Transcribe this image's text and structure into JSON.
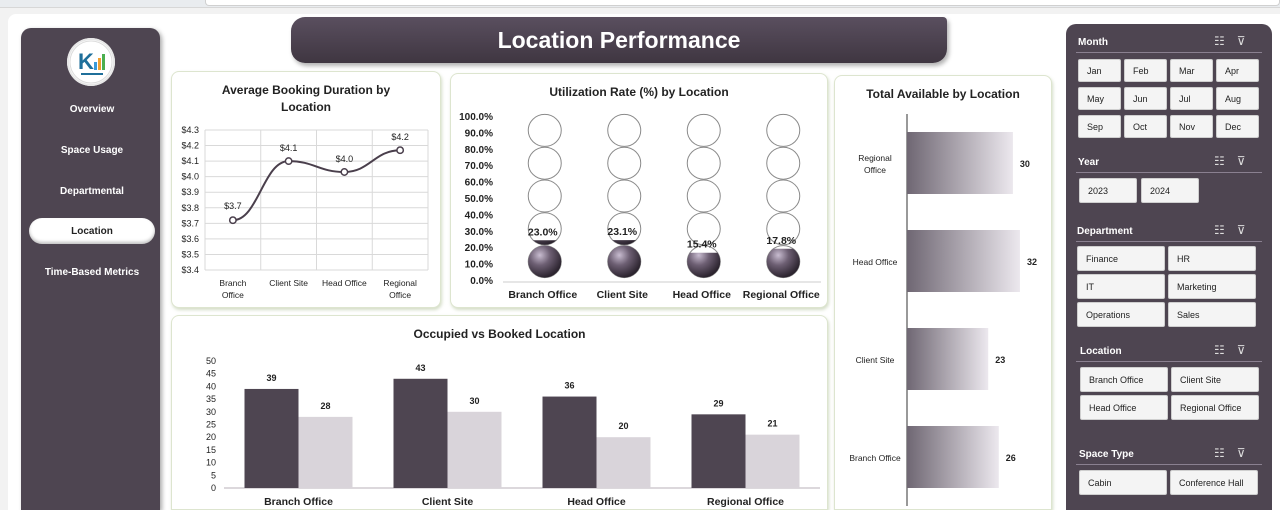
{
  "dashboard_title": "Location Performance",
  "nav": {
    "overview": "Overview",
    "space_usage": "Space Usage",
    "departmental": "Departmental",
    "location": "Location",
    "time_based": "Time-Based Metrics"
  },
  "colors": {
    "dark": "#4e4551",
    "light": "#d9d4da",
    "line": "#4a3f4c"
  },
  "avg_duration": {
    "title": "Average Booking Duration by Location",
    "chart_data": {
      "type": "line",
      "title": "Average Booking Duration by Location",
      "categories": [
        "Branch Office",
        "Client Site",
        "Head Office",
        "Regional Office"
      ],
      "values": [
        3.72,
        4.1,
        4.03,
        4.17
      ],
      "data_labels": [
        "$3.7",
        "$4.1",
        "$4.0",
        "$4.2"
      ],
      "ylim": [
        3.4,
        4.3
      ],
      "y_ticks": [
        "$3.4",
        "$3.5",
        "$3.6",
        "$3.7",
        "$3.8",
        "$3.9",
        "$4.0",
        "$4.1",
        "$4.2",
        "$4.3"
      ],
      "grid": true
    }
  },
  "utilization": {
    "title": "Utilization Rate (%) by Location",
    "chart_data": {
      "type": "bar",
      "title": "Utilization Rate (%) by Location",
      "categories": [
        "Branch Office",
        "Client Site",
        "Head Office",
        "Regional Office"
      ],
      "values": [
        23.0,
        23.1,
        15.4,
        17.8
      ],
      "data_labels": [
        "23.0%",
        "23.1%",
        "15.4%",
        "17.8%"
      ],
      "ylim": [
        0,
        100
      ],
      "y_ticks": [
        "0.0%",
        "10.0%",
        "20.0%",
        "30.0%",
        "40.0%",
        "50.0%",
        "60.0%",
        "70.0%",
        "80.0%",
        "90.0%",
        "100.0%"
      ]
    }
  },
  "total_available": {
    "title": "Total Available by Location",
    "chart_data": {
      "type": "bar",
      "orientation": "horizontal",
      "title": "Total Available by Location",
      "categories": [
        "Regional Office",
        "Head Office",
        "Client Site",
        "Branch Office"
      ],
      "category_lines": [
        [
          "Regional",
          "Office"
        ],
        [
          "Head Office"
        ],
        [
          "Client Site"
        ],
        [
          "Branch Office"
        ]
      ],
      "values": [
        30,
        32,
        23,
        26
      ],
      "xlim": [
        0,
        35
      ]
    }
  },
  "occupied_booked": {
    "title": "Occupied vs Booked Location",
    "chart_data": {
      "type": "bar",
      "title": "Occupied vs Booked Location",
      "categories": [
        "Branch Office",
        "Client Site",
        "Head Office",
        "Regional Office"
      ],
      "series": [
        {
          "values": [
            39,
            43,
            36,
            29
          ]
        },
        {
          "values": [
            28,
            30,
            20,
            21
          ]
        }
      ],
      "ylim": [
        0,
        50
      ],
      "y_ticks": [
        "0",
        "5",
        "10",
        "15",
        "20",
        "25",
        "30",
        "35",
        "40",
        "45",
        "50"
      ]
    }
  },
  "filters": {
    "month": {
      "title": "Month",
      "options": [
        "Jan",
        "Feb",
        "Mar",
        "Apr",
        "May",
        "Jun",
        "Jul",
        "Aug",
        "Sep",
        "Oct",
        "Nov",
        "Dec"
      ]
    },
    "year": {
      "title": "Year",
      "options": [
        "2023",
        "2024"
      ]
    },
    "department": {
      "title": "Department",
      "options": [
        "Finance",
        "HR",
        "IT",
        "Marketing",
        "Operations",
        "Sales"
      ]
    },
    "location": {
      "title": "Location",
      "options": [
        "Branch Office",
        "Client Site",
        "Head Office",
        "Regional Office"
      ]
    },
    "space_type": {
      "title": "Space Type",
      "options": [
        "Cabin",
        "Conference Hall"
      ]
    }
  }
}
